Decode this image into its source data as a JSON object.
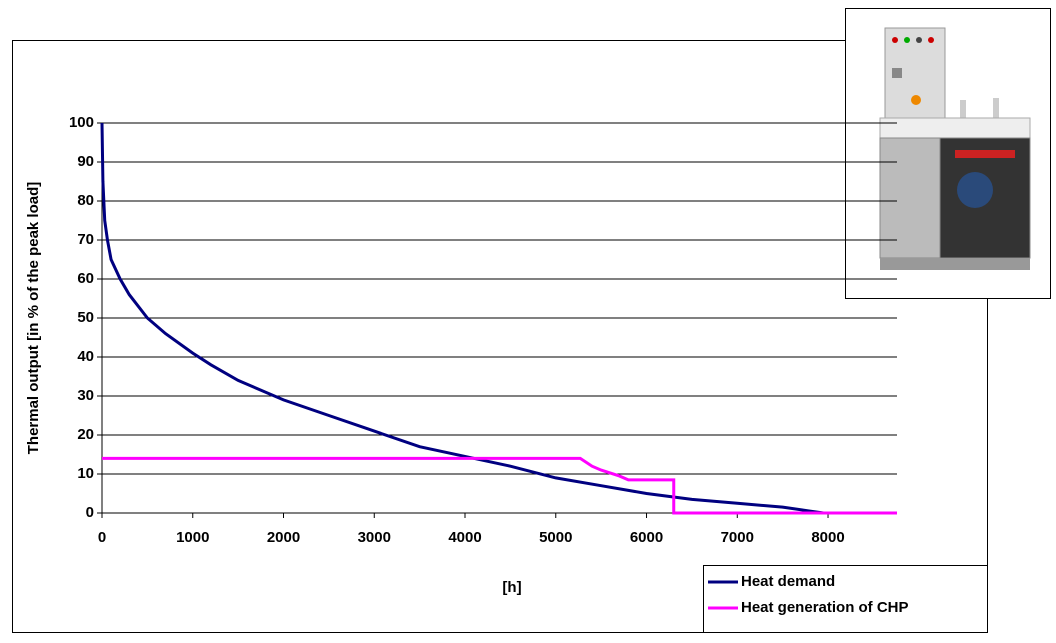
{
  "chart_data": {
    "type": "line",
    "xlabel": "[h]",
    "ylabel": "Thermal output [in % of the peak load]",
    "xlim": [
      0,
      8760
    ],
    "xticks": [
      0,
      1000,
      2000,
      3000,
      4000,
      5000,
      6000,
      7000,
      8000
    ],
    "ylim": [
      0,
      100
    ],
    "yticks": [
      0,
      10,
      20,
      30,
      40,
      50,
      60,
      70,
      80,
      90,
      100
    ],
    "grid": true,
    "legend": "bottom-right",
    "series": [
      {
        "name": "Heat demand",
        "color": "#000080",
        "x": [
          0,
          10,
          30,
          60,
          100,
          200,
          300,
          500,
          700,
          1000,
          1200,
          1500,
          2000,
          2500,
          3000,
          3500,
          4000,
          4500,
          5000,
          5500,
          6000,
          6500,
          7000,
          7500,
          7800,
          7950
        ],
        "values": [
          100,
          85,
          75,
          70,
          65,
          60,
          56,
          50,
          46,
          41,
          38,
          34,
          29,
          25,
          21,
          17,
          14.5,
          12,
          9,
          7,
          5,
          3.5,
          2.5,
          1.5,
          0.5,
          0
        ]
      },
      {
        "name": "Heat generation of CHP",
        "color": "#ff00ff",
        "x": [
          0,
          5270,
          5400,
          5500,
          5700,
          5800,
          6300,
          6300,
          8760
        ],
        "values": [
          14,
          14,
          12,
          11,
          9.5,
          8.5,
          8.5,
          0,
          0
        ]
      }
    ]
  }
}
